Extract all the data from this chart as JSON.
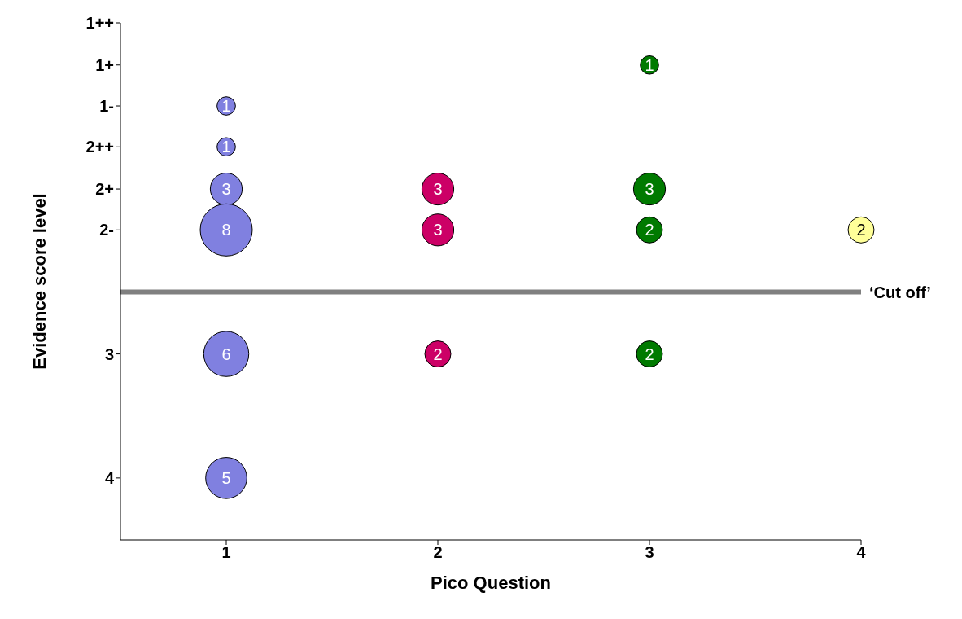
{
  "chart_data": {
    "type": "bubble",
    "xlabel": "Pico Question",
    "ylabel": "Evidence score level",
    "xlim": [
      0.5,
      4
    ],
    "xticks": [
      1,
      2,
      3,
      4
    ],
    "ylim": [
      4.5,
      0.33
    ],
    "yticks": [
      4,
      3,
      {
        "value": 2,
        "label": "2-"
      },
      {
        "value": 1.67,
        "label": "2+"
      },
      {
        "value": 1.33,
        "label": "2++"
      },
      {
        "value": 1,
        "label": "1-"
      },
      {
        "value": 0.67,
        "label": "1+"
      },
      {
        "value": 0.33,
        "label": "1++"
      }
    ],
    "grid": false,
    "legend": false,
    "marker": "circle",
    "series": [
      {
        "color": "#8080e0",
        "x": [
          1,
          1,
          1,
          1,
          1,
          1
        ],
        "values": [
          1,
          1.33,
          1.67,
          2,
          3,
          4
        ],
        "sizes": [
          1,
          1,
          3,
          8,
          6,
          5
        ],
        "value_labels": [
          "1",
          "1",
          "3",
          "8",
          "6",
          "5"
        ]
      },
      {
        "color": "#cc0066",
        "x": [
          2,
          2,
          2
        ],
        "values": [
          1.67,
          2,
          3
        ],
        "sizes": [
          3,
          3,
          2
        ],
        "value_labels": [
          "3",
          "3",
          "2"
        ]
      },
      {
        "color": "#007a00",
        "x": [
          3,
          3,
          3,
          3
        ],
        "values": [
          0.67,
          1.67,
          2,
          3
        ],
        "sizes": [
          1,
          3,
          2,
          2
        ],
        "value_labels": [
          "1",
          "3",
          "2",
          "2"
        ]
      },
      {
        "color": "#ffff99",
        "x": [
          4
        ],
        "values": [
          2
        ],
        "sizes": [
          2
        ],
        "value_labels": [
          "2"
        ]
      }
    ],
    "ref_lines": [
      {
        "axis": "y",
        "value": 2.5,
        "label": "‘Cut off’",
        "color": "#808080"
      }
    ]
  }
}
